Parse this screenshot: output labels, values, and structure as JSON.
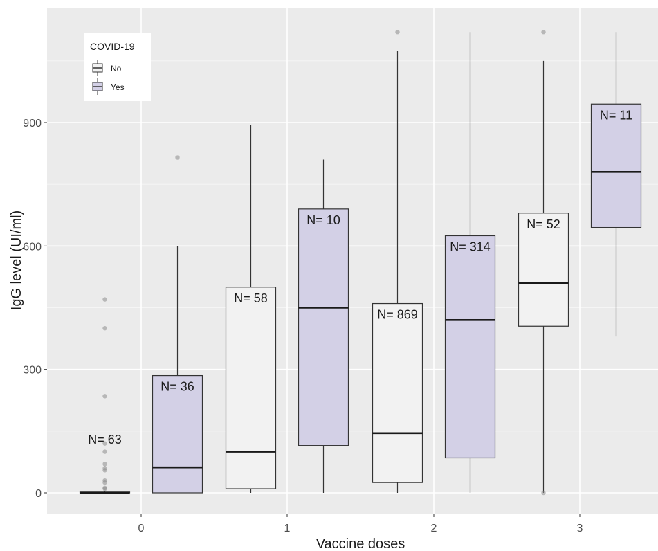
{
  "chart_data": {
    "type": "boxplot",
    "xlabel": "Vaccine doses",
    "ylabel": "IgG level (UI/ml)",
    "categories": [
      "0",
      "1",
      "2",
      "3"
    ],
    "y_ticks": [
      "0",
      "300",
      "600",
      "900"
    ],
    "ylim": [
      -50,
      1180
    ],
    "grid": true,
    "legend": {
      "title": "COVID-19",
      "position": "top-left",
      "entries": [
        {
          "label": "No",
          "color": "#f2f2f2"
        },
        {
          "label": "Yes",
          "color": "#d3d0e6"
        }
      ]
    },
    "series": [
      {
        "name": "No",
        "color": "#f2f2f2",
        "boxes": [
          {
            "category": "0",
            "n_label": "N= 63",
            "min": 0,
            "q1": 0,
            "median": 0,
            "q3": 2,
            "max": 5,
            "outliers": [
              10,
              12,
              25,
              30,
              55,
              60,
              70,
              100,
              120,
              235,
              400,
              470
            ]
          },
          {
            "category": "1",
            "n_label": "N= 58",
            "min": 0,
            "q1": 10,
            "median": 100,
            "q3": 500,
            "max": 895,
            "outliers": []
          },
          {
            "category": "2",
            "n_label": "N= 869",
            "min": 0,
            "q1": 25,
            "median": 145,
            "q3": 460,
            "max": 1075,
            "outliers": [
              1120
            ]
          },
          {
            "category": "3",
            "n_label": "N= 52",
            "min": 0,
            "q1": 405,
            "median": 510,
            "q3": 680,
            "max": 1050,
            "outliers": [
              0,
              1120
            ]
          }
        ]
      },
      {
        "name": "Yes",
        "color": "#d3d0e6",
        "boxes": [
          {
            "category": "0",
            "n_label": "N= 36",
            "min": 0,
            "q1": 0,
            "median": 62,
            "q3": 285,
            "max": 600,
            "outliers": [
              815
            ]
          },
          {
            "category": "1",
            "n_label": "N= 10",
            "min": 0,
            "q1": 115,
            "median": 450,
            "q3": 690,
            "max": 810,
            "outliers": []
          },
          {
            "category": "2",
            "n_label": "N= 314",
            "min": 0,
            "q1": 85,
            "median": 420,
            "q3": 625,
            "max": 1120,
            "outliers": []
          },
          {
            "category": "3",
            "n_label": "N= 11",
            "min": 380,
            "q1": 645,
            "median": 780,
            "q3": 945,
            "max": 1120,
            "outliers": []
          }
        ]
      }
    ]
  }
}
